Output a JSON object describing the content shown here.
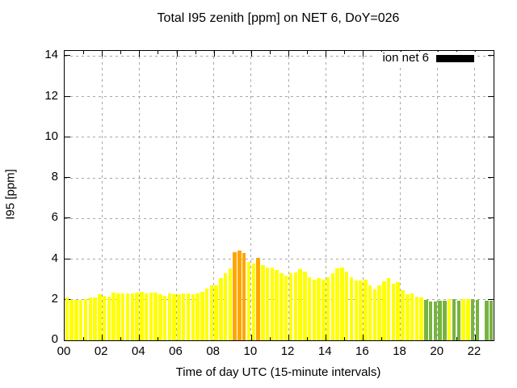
{
  "title": "Total I95 zenith [ppm] on NET 6, DoY=026",
  "legend": {
    "label": "ion net 6",
    "swatch_color": "#000000"
  },
  "chart_data": {
    "type": "bar",
    "title": "Total I95 zenith [ppm] on NET 6, DoY=026",
    "xlabel": "Time of day UTC (15-minute intervals)",
    "ylabel": "I95 [ppm]",
    "xlim_hours": [
      0,
      23
    ],
    "ylim": [
      0,
      14.25
    ],
    "grid": true,
    "legend_position": "top-right-inside",
    "x_tick_labels": [
      "00",
      "02",
      "04",
      "06",
      "08",
      "10",
      "12",
      "14",
      "16",
      "18",
      "20",
      "22"
    ],
    "x_tick_hours": [
      0,
      2,
      4,
      6,
      8,
      10,
      12,
      14,
      16,
      18,
      20,
      22
    ],
    "y_tick_labels": [
      "0",
      "2",
      "4",
      "6",
      "8",
      "10",
      "12",
      "14"
    ],
    "y_tick_values": [
      0,
      2,
      4,
      6,
      8,
      10,
      12,
      14
    ],
    "interval_minutes": 15,
    "palette": {
      "y": "#ffff00",
      "o": "#ffa500",
      "g": "#77b341",
      "x": null
    },
    "times": [
      "00:00",
      "00:15",
      "00:30",
      "00:45",
      "01:00",
      "01:15",
      "01:30",
      "01:45",
      "02:00",
      "02:15",
      "02:30",
      "02:45",
      "03:00",
      "03:15",
      "03:30",
      "03:45",
      "04:00",
      "04:15",
      "04:30",
      "04:45",
      "05:00",
      "05:15",
      "05:30",
      "05:45",
      "06:00",
      "06:15",
      "06:30",
      "06:45",
      "07:00",
      "07:15",
      "07:30",
      "07:45",
      "08:00",
      "08:15",
      "08:30",
      "08:45",
      "09:00",
      "09:15",
      "09:30",
      "09:45",
      "10:00",
      "10:15",
      "10:30",
      "10:45",
      "11:00",
      "11:15",
      "11:30",
      "11:45",
      "12:00",
      "12:15",
      "12:30",
      "12:45",
      "13:00",
      "13:15",
      "13:30",
      "13:45",
      "14:00",
      "14:15",
      "14:30",
      "14:45",
      "15:00",
      "15:15",
      "15:30",
      "15:45",
      "16:00",
      "16:15",
      "16:30",
      "16:45",
      "17:00",
      "17:15",
      "17:30",
      "17:45",
      "18:00",
      "18:15",
      "18:30",
      "18:45",
      "19:00",
      "19:15",
      "19:30",
      "19:45",
      "20:00",
      "20:15",
      "20:30",
      "20:45",
      "21:00",
      "21:15",
      "21:30",
      "21:45",
      "22:00",
      "22:15",
      "22:30",
      "22:45"
    ],
    "values": [
      2.1,
      2.0,
      2.0,
      2.0,
      2.05,
      2.1,
      2.1,
      2.25,
      2.2,
      2.15,
      2.35,
      2.3,
      2.3,
      2.3,
      2.3,
      2.35,
      2.4,
      2.3,
      2.35,
      2.35,
      2.25,
      2.2,
      2.3,
      2.25,
      2.25,
      2.3,
      2.3,
      2.25,
      2.3,
      2.4,
      2.55,
      2.7,
      2.7,
      3.05,
      3.3,
      3.55,
      4.35,
      4.4,
      4.3,
      3.85,
      3.8,
      4.05,
      3.7,
      3.6,
      3.6,
      3.45,
      3.3,
      3.2,
      3.3,
      3.35,
      3.5,
      3.4,
      3.1,
      3.0,
      3.05,
      3.0,
      3.1,
      3.3,
      3.55,
      3.6,
      3.4,
      3.1,
      2.95,
      2.95,
      3.0,
      2.7,
      2.5,
      2.7,
      2.9,
      3.05,
      2.8,
      2.85,
      2.45,
      2.25,
      2.3,
      2.15,
      2.1,
      2.0,
      1.9,
      1.9,
      1.95,
      1.95,
      2.05,
      2.05,
      1.95,
      2.05,
      2.05,
      2.05,
      2.0,
      null,
      1.95,
      1.95
    ],
    "colors": [
      "y",
      "y",
      "y",
      "y",
      "y",
      "y",
      "y",
      "y",
      "y",
      "y",
      "y",
      "y",
      "y",
      "y",
      "y",
      "y",
      "y",
      "y",
      "y",
      "y",
      "y",
      "y",
      "y",
      "y",
      "y",
      "y",
      "y",
      "y",
      "y",
      "y",
      "y",
      "y",
      "y",
      "y",
      "y",
      "y",
      "o",
      "o",
      "o",
      "y",
      "y",
      "o",
      "y",
      "y",
      "y",
      "y",
      "y",
      "y",
      "y",
      "y",
      "y",
      "y",
      "y",
      "y",
      "y",
      "y",
      "y",
      "y",
      "y",
      "y",
      "y",
      "y",
      "y",
      "y",
      "y",
      "y",
      "y",
      "y",
      "y",
      "y",
      "y",
      "y",
      "y",
      "y",
      "y",
      "y",
      "y",
      "g",
      "g",
      "g",
      "g",
      "g",
      "y",
      "g",
      "g",
      "y",
      "y",
      "g",
      "g",
      "x",
      "g",
      "g"
    ]
  }
}
